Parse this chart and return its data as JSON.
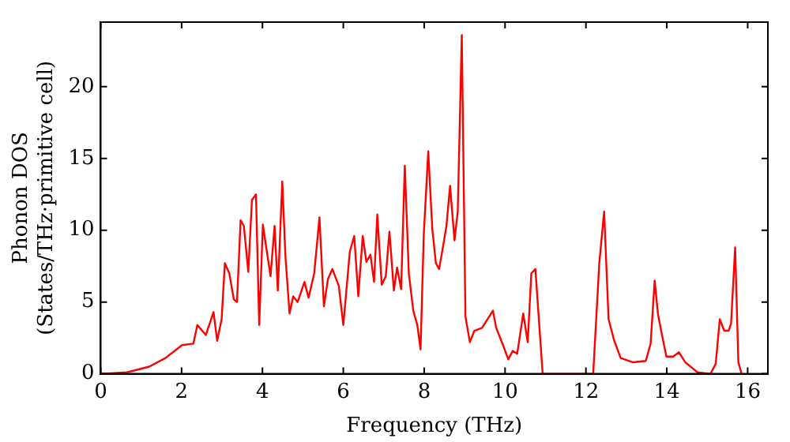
{
  "chart_data": {
    "type": "line",
    "xlabel": "Frequency (THz)",
    "ylabel": "Phonon DOS\n(States/THz·primitive cell)",
    "xlim": [
      0,
      16.5
    ],
    "ylim": [
      0,
      24.5
    ],
    "xticks": [
      0,
      2,
      4,
      6,
      8,
      10,
      12,
      14,
      16
    ],
    "yticks": [
      0,
      5,
      10,
      15,
      20
    ],
    "grid": false,
    "legend": false,
    "marker": "none",
    "line_style": "solid",
    "series": [
      {
        "color": "#ff0000",
        "x": [
          0,
          0.65,
          1.2,
          1.6,
          2.01,
          2.29,
          2.39,
          2.6,
          2.79,
          2.88,
          2.99,
          3.07,
          3.18,
          3.29,
          3.37,
          3.46,
          3.54,
          3.65,
          3.74,
          3.84,
          3.92,
          4.01,
          4.11,
          4.2,
          4.3,
          4.38,
          4.49,
          4.57,
          4.67,
          4.76,
          4.87,
          5.04,
          5.14,
          5.28,
          5.41,
          5.52,
          5.62,
          5.73,
          5.89,
          6.0,
          6.16,
          6.27,
          6.37,
          6.48,
          6.57,
          6.67,
          6.76,
          6.84,
          6.95,
          7.05,
          7.14,
          7.25,
          7.33,
          7.43,
          7.52,
          7.62,
          7.73,
          7.83,
          7.91,
          7.99,
          8.1,
          8.2,
          8.29,
          8.37,
          8.48,
          8.55,
          8.64,
          8.75,
          8.83,
          8.93,
          9.02,
          9.13,
          9.24,
          9.43,
          9.7,
          9.78,
          9.95,
          10.08,
          10.19,
          10.3,
          10.45,
          10.56,
          10.65,
          10.75,
          10.93,
          12.18,
          12.33,
          12.45,
          12.56,
          12.7,
          12.86,
          13.17,
          13.48,
          13.6,
          13.7,
          13.78,
          13.86,
          13.99,
          14.16,
          14.3,
          14.46,
          14.76,
          15.08,
          15.21,
          15.31,
          15.42,
          15.53,
          15.59,
          15.69,
          15.77,
          15.85
        ],
        "values": [
          0,
          0.1,
          0.5,
          1.1,
          2.0,
          2.1,
          3.4,
          2.7,
          4.3,
          2.3,
          3.8,
          7.7,
          7.0,
          5.2,
          5.0,
          10.7,
          10.3,
          7.1,
          12.1,
          12.5,
          3.4,
          10.4,
          8.5,
          6.8,
          10.3,
          5.8,
          13.4,
          8.1,
          4.2,
          5.4,
          5.0,
          6.4,
          5.3,
          7.0,
          10.9,
          4.7,
          6.6,
          7.3,
          6.1,
          3.4,
          8.5,
          9.6,
          5.4,
          9.6,
          7.8,
          8.3,
          6.4,
          11.1,
          6.2,
          6.8,
          9.9,
          5.8,
          7.4,
          5.9,
          14.5,
          7.0,
          4.4,
          3.4,
          1.7,
          9.7,
          15.5,
          10.1,
          7.7,
          7.3,
          9.1,
          10.3,
          13.1,
          9.3,
          11.3,
          23.6,
          4.0,
          2.2,
          3.0,
          3.2,
          4.4,
          3.2,
          2.0,
          1.0,
          1.6,
          1.4,
          4.2,
          2.2,
          7.0,
          7.3,
          0,
          0,
          7.7,
          11.3,
          3.8,
          2.3,
          1.1,
          0.8,
          0.9,
          2.1,
          6.5,
          4.2,
          3.0,
          1.2,
          1.2,
          1.5,
          0.8,
          0.1,
          0,
          0.7,
          3.8,
          3.0,
          3.0,
          3.5,
          8.8,
          0.8,
          0
        ]
      }
    ]
  }
}
